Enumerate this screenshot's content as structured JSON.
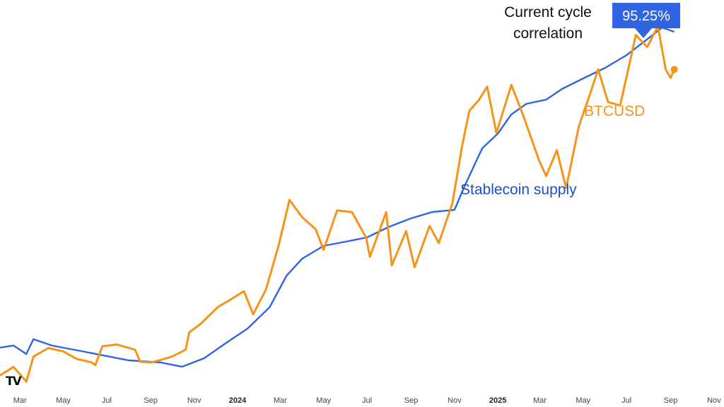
{
  "logo_text": "TV",
  "chart_data": {
    "type": "line",
    "x_tick_labels": [
      "Mar",
      "May",
      "Jul",
      "Sep",
      "Nov",
      "2024",
      "Mar",
      "May",
      "Jul",
      "Sep",
      "Nov",
      "2025",
      "Mar",
      "May",
      "Jul",
      "Sep",
      "Nov"
    ],
    "x_range": [
      "2023-02-01",
      "2025-11-15"
    ],
    "y_range_btcusd": [
      19000,
      125000
    ],
    "y_range_stablecoin_supply": [
      118,
      290
    ],
    "series": [
      {
        "name": "BTCUSD",
        "color": "#F7931A",
        "points": [
          [
            "2023-02-01",
            22000
          ],
          [
            "2023-02-20",
            24500
          ],
          [
            "2023-03-10",
            20200
          ],
          [
            "2023-03-20",
            27500
          ],
          [
            "2023-04-10",
            30000
          ],
          [
            "2023-05-01",
            29000
          ],
          [
            "2023-05-20",
            26800
          ],
          [
            "2023-06-10",
            25800
          ],
          [
            "2023-06-15",
            25000
          ],
          [
            "2023-06-25",
            30500
          ],
          [
            "2023-07-15",
            31000
          ],
          [
            "2023-08-10",
            29500
          ],
          [
            "2023-08-17",
            26000
          ],
          [
            "2023-09-01",
            25800
          ],
          [
            "2023-09-15",
            26500
          ],
          [
            "2023-10-01",
            27500
          ],
          [
            "2023-10-20",
            29500
          ],
          [
            "2023-10-25",
            34500
          ],
          [
            "2023-11-10",
            37000
          ],
          [
            "2023-12-05",
            42000
          ],
          [
            "2023-12-20",
            43800
          ],
          [
            "2024-01-10",
            46500
          ],
          [
            "2024-01-23",
            39800
          ],
          [
            "2024-02-10",
            47000
          ],
          [
            "2024-02-28",
            60000
          ],
          [
            "2024-03-14",
            73000
          ],
          [
            "2024-04-01",
            68000
          ],
          [
            "2024-04-20",
            64500
          ],
          [
            "2024-05-01",
            58500
          ],
          [
            "2024-05-20",
            70000
          ],
          [
            "2024-06-10",
            69500
          ],
          [
            "2024-06-30",
            62000
          ],
          [
            "2024-07-05",
            56500
          ],
          [
            "2024-07-28",
            69500
          ],
          [
            "2024-08-05",
            54000
          ],
          [
            "2024-08-25",
            64000
          ],
          [
            "2024-09-06",
            53500
          ],
          [
            "2024-09-27",
            65500
          ],
          [
            "2024-10-10",
            60500
          ],
          [
            "2024-10-29",
            72000
          ],
          [
            "2024-11-12",
            89000
          ],
          [
            "2024-11-22",
            99000
          ],
          [
            "2024-12-05",
            102000
          ],
          [
            "2024-12-17",
            106000
          ],
          [
            "2024-12-30",
            92500
          ],
          [
            "2025-01-20",
            106500
          ],
          [
            "2025-02-05",
            98000
          ],
          [
            "2025-02-28",
            84500
          ],
          [
            "2025-03-10",
            80000
          ],
          [
            "2025-03-25",
            87500
          ],
          [
            "2025-04-07",
            76500
          ],
          [
            "2025-04-25",
            94500
          ],
          [
            "2025-05-10",
            103500
          ],
          [
            "2025-05-22",
            111000
          ],
          [
            "2025-06-05",
            101500
          ],
          [
            "2025-06-22",
            100500
          ],
          [
            "2025-07-14",
            121000
          ],
          [
            "2025-07-30",
            117500
          ],
          [
            "2025-08-14",
            123500
          ],
          [
            "2025-08-25",
            111000
          ],
          [
            "2025-09-01",
            108500
          ],
          [
            "2025-09-06",
            111000
          ]
        ]
      },
      {
        "name": "Stablecoin supply",
        "color": "#2F65E0",
        "points": [
          [
            "2023-02-01",
            136
          ],
          [
            "2023-02-20",
            137
          ],
          [
            "2023-03-10",
            133
          ],
          [
            "2023-03-20",
            140
          ],
          [
            "2023-04-15",
            137
          ],
          [
            "2023-06-01",
            134
          ],
          [
            "2023-08-01",
            130
          ],
          [
            "2023-09-15",
            129
          ],
          [
            "2023-10-15",
            127
          ],
          [
            "2023-11-15",
            131
          ],
          [
            "2023-12-15",
            138
          ],
          [
            "2024-01-15",
            145
          ],
          [
            "2024-02-15",
            155
          ],
          [
            "2024-03-10",
            170
          ],
          [
            "2024-04-01",
            178
          ],
          [
            "2024-05-01",
            184
          ],
          [
            "2024-06-01",
            186
          ],
          [
            "2024-07-01",
            188
          ],
          [
            "2024-08-01",
            193
          ],
          [
            "2024-09-01",
            197
          ],
          [
            "2024-10-01",
            200
          ],
          [
            "2024-11-01",
            201
          ],
          [
            "2024-11-15",
            212
          ],
          [
            "2024-12-10",
            230
          ],
          [
            "2025-01-01",
            237
          ],
          [
            "2025-01-20",
            246
          ],
          [
            "2025-02-10",
            251
          ],
          [
            "2025-03-10",
            253
          ],
          [
            "2025-04-01",
            258
          ],
          [
            "2025-05-01",
            263
          ],
          [
            "2025-06-01",
            268
          ],
          [
            "2025-07-01",
            274
          ],
          [
            "2025-08-01",
            282
          ],
          [
            "2025-08-20",
            287
          ],
          [
            "2025-09-06",
            285
          ]
        ]
      }
    ],
    "annotations": {
      "correlation_label_line1": "Current cycle",
      "correlation_label_line2": "correlation",
      "correlation_value": "95.25%",
      "badge_color": "#2F65E0",
      "btc_label": "BTCUSD",
      "stablecoin_label": "Stablecoin supply"
    }
  }
}
